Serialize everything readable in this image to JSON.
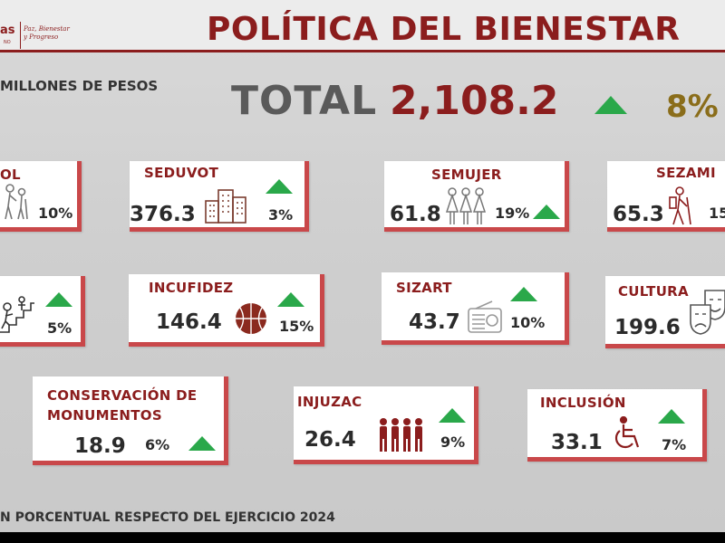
{
  "header": {
    "logo_text": "as",
    "logo_sub": "NO",
    "logo_script_line1": "Paz, Bienestar",
    "logo_script_line2": "y Progreso",
    "title": "POLÍTICA DEL BIENESTAR"
  },
  "summary": {
    "units": "MILLONES DE PESOS",
    "total_label": "TOTAL",
    "total_value": "2,108.2",
    "total_pct": "8%"
  },
  "cards": [
    {
      "title": "OL",
      "value": "",
      "pct": "10%",
      "icon": "elderly-couple-icon"
    },
    {
      "title": "SEDUVOT",
      "value": "376.3",
      "pct": "3%",
      "icon": "buildings-icon"
    },
    {
      "title": "SEMUJER",
      "value": "61.8",
      "pct": "19%",
      "icon": "women-group-icon"
    },
    {
      "title": "SEZAMI",
      "value": "65.3",
      "pct": "15",
      "icon": "migrant-hiker-icon"
    },
    {
      "title": "",
      "value": "",
      "pct": "5%",
      "icon": "stairs-climb-icon"
    },
    {
      "title": "INCUFIDEZ",
      "value": "146.4",
      "pct": "15%",
      "icon": "basketball-icon"
    },
    {
      "title": "SIZART",
      "value": "43.7",
      "pct": "10%",
      "icon": "radio-icon"
    },
    {
      "title": "CULTURA",
      "value": "199.6",
      "pct": "",
      "icon": "theater-masks-icon"
    },
    {
      "title": "CONSERVACIÓN DE MONUMENTOS",
      "value": "18.9",
      "pct": "6%",
      "icon": ""
    },
    {
      "title": "INJUZAC",
      "value": "26.4",
      "pct": "9%",
      "icon": "youth-group-icon"
    },
    {
      "title": "INCLUSIÓN",
      "value": "33.1",
      "pct": "7%",
      "icon": "wheelchair-icon"
    }
  ],
  "cards_title_lines": {
    "monumentos_line1": "CONSERVACIÓN DE",
    "monumentos_line2": "MONUMENTOS"
  },
  "footer": {
    "note": "N PORCENTUAL RESPECTO DEL EJERCICIO 2024"
  },
  "colors": {
    "brand": "#8b1d1d",
    "accent_red": "#c9484a",
    "arrow_green": "#2aa84a",
    "total_pct_gold": "#8a6d1a"
  }
}
